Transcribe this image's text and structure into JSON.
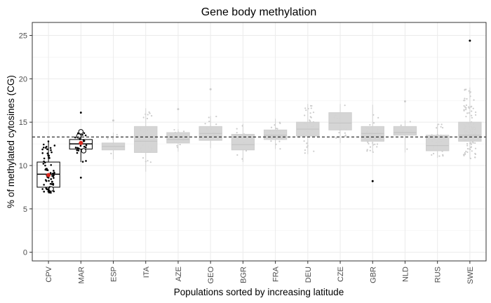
{
  "chart_data": {
    "type": "box",
    "title": "Gene body methylation",
    "xlabel": "Populations sorted by increasing latitude",
    "ylabel": "% of methylated cytosines (CG)",
    "ylim": [
      -1,
      26.5
    ],
    "yticks": [
      0,
      5,
      10,
      15,
      20,
      25
    ],
    "reference_line": 13.3,
    "grid": true,
    "highlight_color": "#000000",
    "muted_color": "#d3d3d3",
    "mean_marker_color": "#d9261c",
    "categories": [
      "CPV",
      "MAR",
      "ESP",
      "ITA",
      "AZE",
      "GEO",
      "BGR",
      "FRA",
      "DEU",
      "CZE",
      "GBR",
      "NLD",
      "RUS",
      "SWE"
    ],
    "boxes": [
      {
        "category": "CPV",
        "q1": 7.5,
        "median": 9.0,
        "q3": 10.4,
        "whisker_low": 6.8,
        "whisker_high": 12.8,
        "highlight": true,
        "outliers": [],
        "mean": 8.9,
        "n_points": 70
      },
      {
        "category": "MAR",
        "q1": 11.9,
        "median": 12.5,
        "q3": 13.0,
        "whisker_low": 10.4,
        "whisker_high": 13.9,
        "highlight": true,
        "outliers": [
          16.1,
          8.6
        ],
        "mean": 12.6,
        "n_points": 22
      },
      {
        "category": "ESP",
        "q1": 11.8,
        "median": 12.2,
        "q3": 12.6,
        "whisker_low": 10.7,
        "whisker_high": 13.8,
        "highlight": false,
        "outliers": [
          15.2
        ],
        "n_points": 8
      },
      {
        "category": "ITA",
        "q1": 11.5,
        "median": 12.8,
        "q3": 14.5,
        "whisker_low": 9.3,
        "whisker_high": 16.6,
        "highlight": false,
        "outliers": [],
        "n_points": 25
      },
      {
        "category": "AZE",
        "q1": 12.6,
        "median": 13.0,
        "q3": 13.8,
        "whisker_low": 11.6,
        "whisker_high": 14.2,
        "highlight": false,
        "outliers": [
          16.5
        ],
        "n_points": 14
      },
      {
        "category": "GEO",
        "q1": 12.9,
        "median": 13.7,
        "q3": 14.5,
        "whisker_low": 12.0,
        "whisker_high": 15.7,
        "highlight": false,
        "outliers": [
          18.8
        ],
        "n_points": 16
      },
      {
        "category": "BGR",
        "q1": 11.8,
        "median": 12.4,
        "q3": 13.6,
        "whisker_low": 10.4,
        "whisker_high": 14.8,
        "highlight": false,
        "outliers": [],
        "n_points": 12
      },
      {
        "category": "FRA",
        "q1": 13.0,
        "median": 13.5,
        "q3": 14.1,
        "whisker_low": 11.9,
        "whisker_high": 15.4,
        "highlight": false,
        "outliers": [],
        "n_points": 18
      },
      {
        "category": "DEU",
        "q1": 13.4,
        "median": 14.2,
        "q3": 15.0,
        "whisker_low": 11.3,
        "whisker_high": 17.1,
        "highlight": false,
        "outliers": [],
        "n_points": 40
      },
      {
        "category": "CZE",
        "q1": 14.1,
        "median": 14.9,
        "q3": 16.1,
        "whisker_low": 12.6,
        "whisker_high": 17.1,
        "highlight": false,
        "outliers": [],
        "n_points": 14
      },
      {
        "category": "GBR",
        "q1": 12.8,
        "median": 13.7,
        "q3": 14.5,
        "whisker_low": 11.5,
        "whisker_high": 17.0,
        "highlight": false,
        "outliers": [
          8.2
        ],
        "n_points": 35
      },
      {
        "category": "NLD",
        "q1": 13.5,
        "median": 13.8,
        "q3": 14.5,
        "whisker_low": 11.5,
        "whisker_high": 15.2,
        "highlight": false,
        "outliers": [
          17.4
        ],
        "n_points": 8
      },
      {
        "category": "RUS",
        "q1": 11.7,
        "median": 12.3,
        "q3": 13.5,
        "whisker_low": 10.9,
        "whisker_high": 14.8,
        "highlight": false,
        "outliers": [],
        "n_points": 25
      },
      {
        "category": "SWE",
        "q1": 12.8,
        "median": 13.5,
        "q3": 15.0,
        "whisker_low": 10.8,
        "whisker_high": 19.0,
        "highlight": false,
        "outliers": [
          24.4
        ],
        "n_points": 110
      }
    ]
  }
}
